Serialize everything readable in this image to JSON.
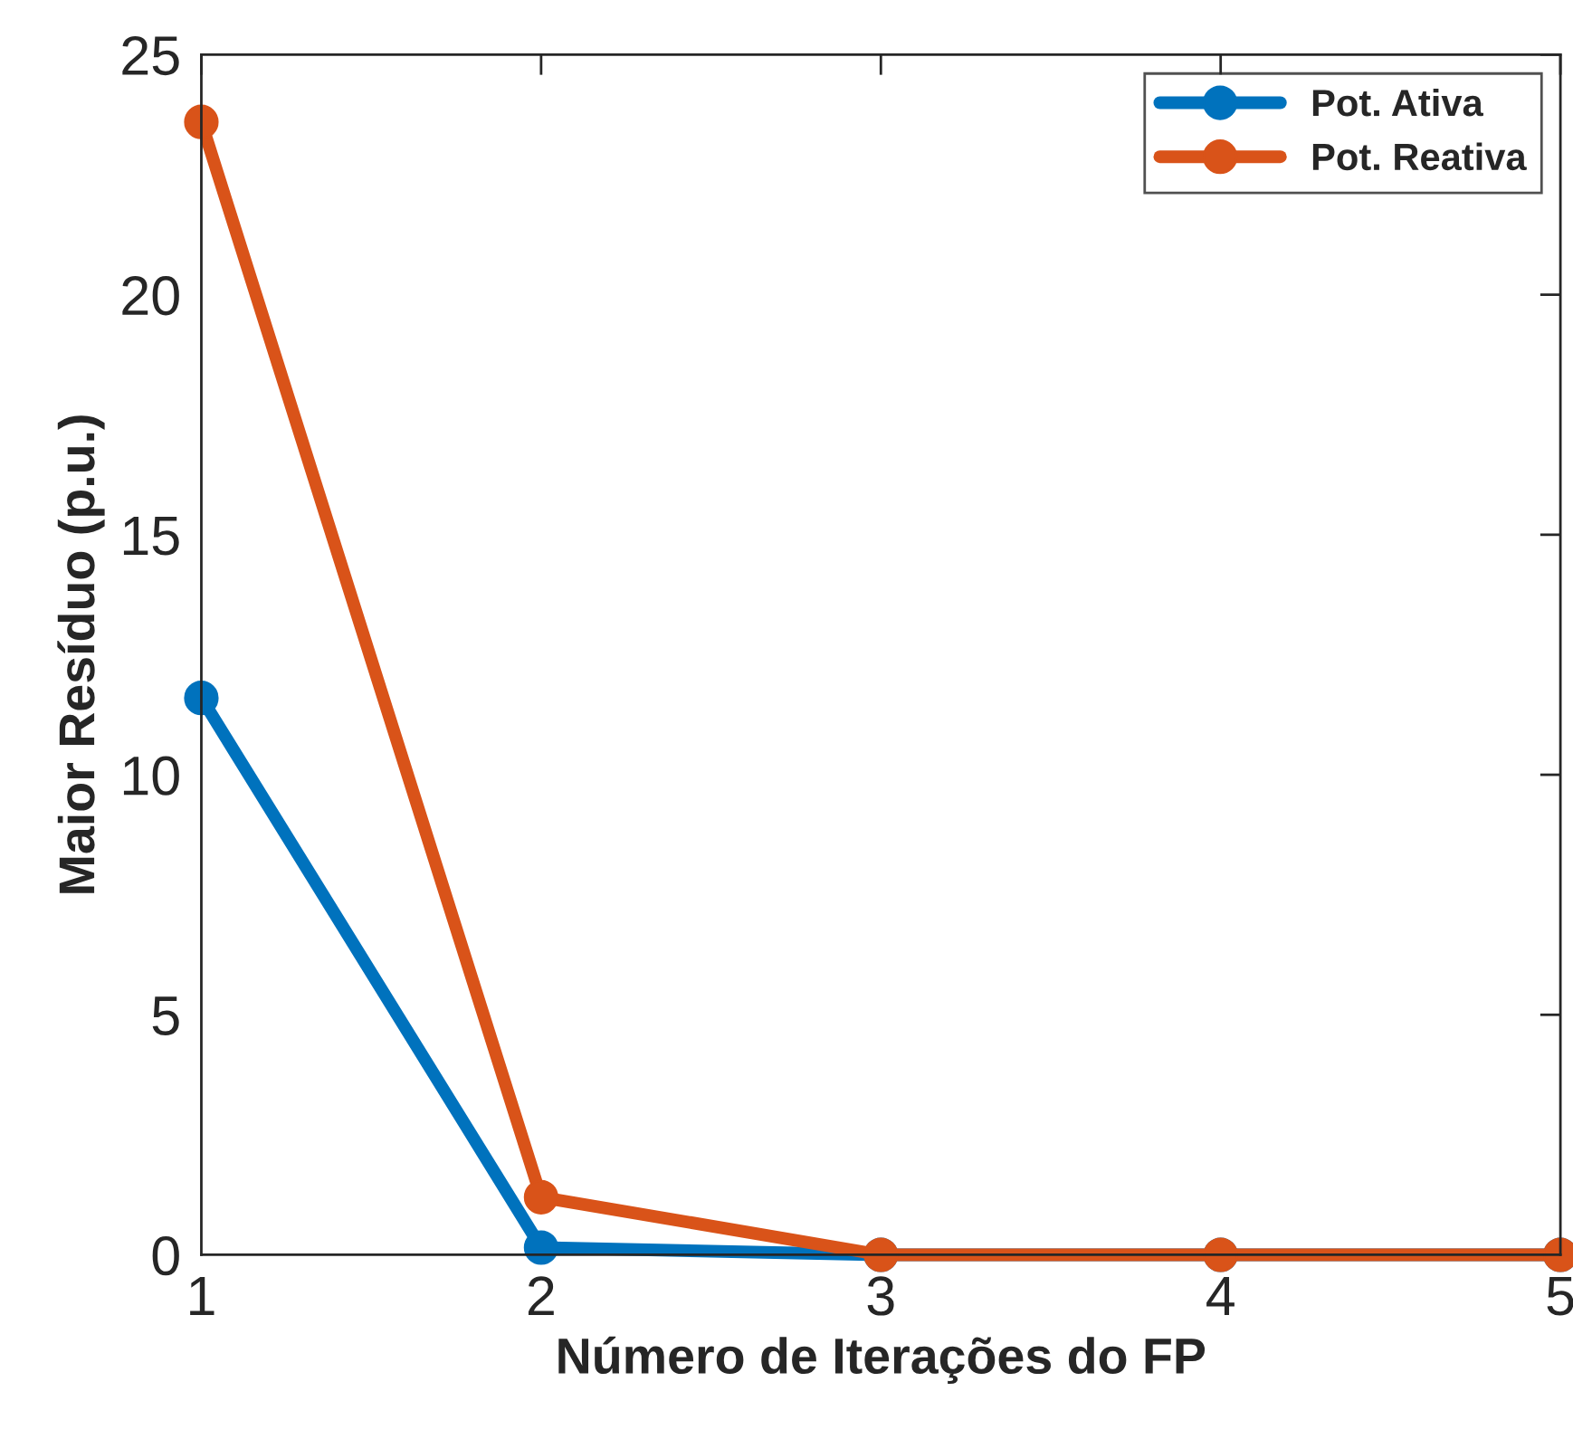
{
  "chart_data": {
    "type": "line",
    "xlabel": "Número de Iterações do FP",
    "ylabel": "Maior Resíduo (p.u.)",
    "x": [
      1,
      2,
      3,
      4,
      5
    ],
    "series": [
      {
        "name": "Pot. Ativa",
        "color": "#0072bd",
        "values": [
          11.6,
          0.15,
          0,
          0,
          0
        ]
      },
      {
        "name": "Pot. Reativa",
        "color": "#d95319",
        "values": [
          23.6,
          1.2,
          0,
          0,
          0
        ]
      }
    ],
    "xlim": [
      1,
      5
    ],
    "xticks": [
      1,
      2,
      3,
      4,
      5
    ],
    "ylim": [
      0,
      25
    ],
    "yticks": [
      0,
      5,
      10,
      15,
      20,
      25
    ],
    "grid": false,
    "legend": "top right",
    "marker": "circle",
    "line_style": "solid"
  }
}
